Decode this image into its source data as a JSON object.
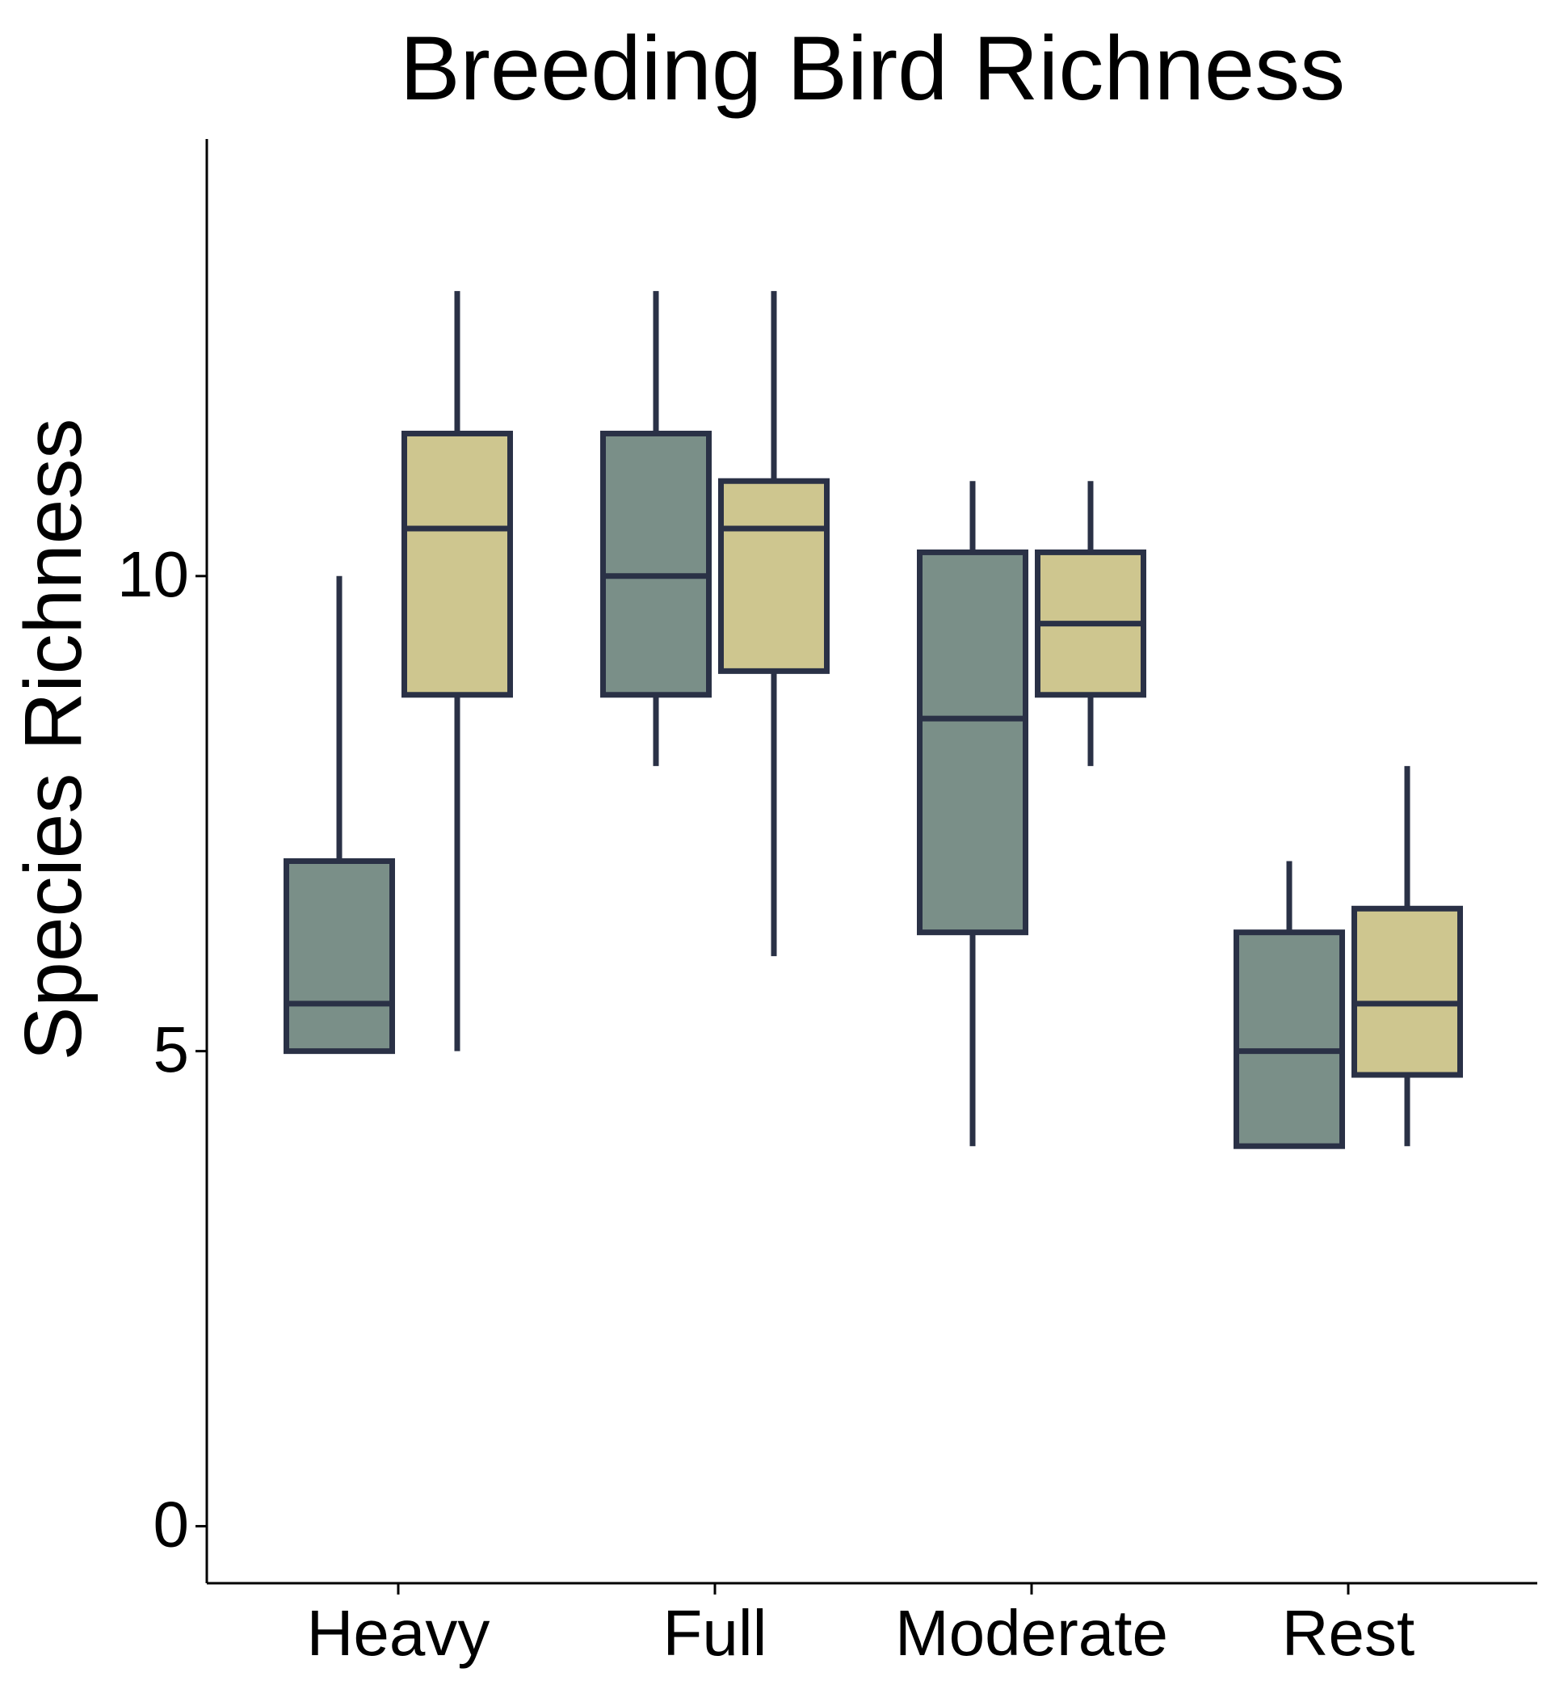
{
  "chart_data": {
    "type": "boxplot",
    "title": "Breeding Bird Richness",
    "xlabel": "",
    "ylabel": "Species Richness",
    "ylim": [
      -0.6,
      14.6
    ],
    "yticks": [
      0,
      5,
      10
    ],
    "categories": [
      "Heavy",
      "Full",
      "Moderate",
      "Rest"
    ],
    "legend": "none",
    "grid": false,
    "series": [
      {
        "color": "#7a8f88",
        "boxes": [
          {
            "category": "Heavy",
            "whisker_low": 5,
            "q1": 5,
            "median": 5.5,
            "q3": 7,
            "whisker_high": 10
          },
          {
            "category": "Full",
            "whisker_low": 8,
            "q1": 8.75,
            "median": 10,
            "q3": 11.5,
            "whisker_high": 13
          },
          {
            "category": "Moderate",
            "whisker_low": 4,
            "q1": 6.25,
            "median": 8.5,
            "q3": 10.25,
            "whisker_high": 11
          },
          {
            "category": "Rest",
            "whisker_low": 4,
            "q1": 4,
            "median": 5,
            "q3": 6.25,
            "whisker_high": 7
          }
        ]
      },
      {
        "color": "#cec68f",
        "boxes": [
          {
            "category": "Heavy",
            "whisker_low": 5,
            "q1": 8.75,
            "median": 10.5,
            "q3": 11.5,
            "whisker_high": 13
          },
          {
            "category": "Full",
            "whisker_low": 6,
            "q1": 9,
            "median": 10.5,
            "q3": 11,
            "whisker_high": 13
          },
          {
            "category": "Moderate",
            "whisker_low": 8,
            "q1": 8.75,
            "median": 9.5,
            "q3": 10.25,
            "whisker_high": 11
          },
          {
            "category": "Rest",
            "whisker_low": 4,
            "q1": 4.75,
            "median": 5.5,
            "q3": 6.5,
            "whisker_high": 8
          }
        ]
      }
    ],
    "outline_color": "#2a3146"
  }
}
